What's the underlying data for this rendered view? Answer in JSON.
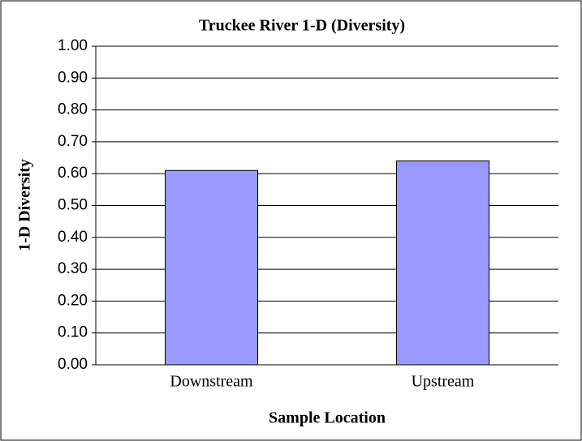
{
  "chart_data": {
    "type": "bar",
    "title": "Truckee River 1-D (Diversity)",
    "x_label": "Sample Location",
    "y_label": "1-D Diversity",
    "categories": [
      "Downstream",
      "Upstream"
    ],
    "values": [
      0.61,
      0.64
    ],
    "color": "#9999ff",
    "ylim": [
      0,
      1
    ],
    "yticks": [
      {
        "value": 0,
        "label": "0.00"
      },
      {
        "value": 0.1,
        "label": "0.10"
      },
      {
        "value": 0.2,
        "label": "0.20"
      },
      {
        "value": 0.3,
        "label": "0.30"
      },
      {
        "value": 0.4,
        "label": "0.40"
      },
      {
        "value": 0.5,
        "label": "0.50"
      },
      {
        "value": 0.6,
        "label": "0.60"
      },
      {
        "value": 0.7,
        "label": "0.70"
      },
      {
        "value": 0.8,
        "label": "0.80"
      },
      {
        "value": 0.9,
        "label": "0.90"
      },
      {
        "value": 1,
        "label": "1.00"
      }
    ],
    "grid": true
  }
}
